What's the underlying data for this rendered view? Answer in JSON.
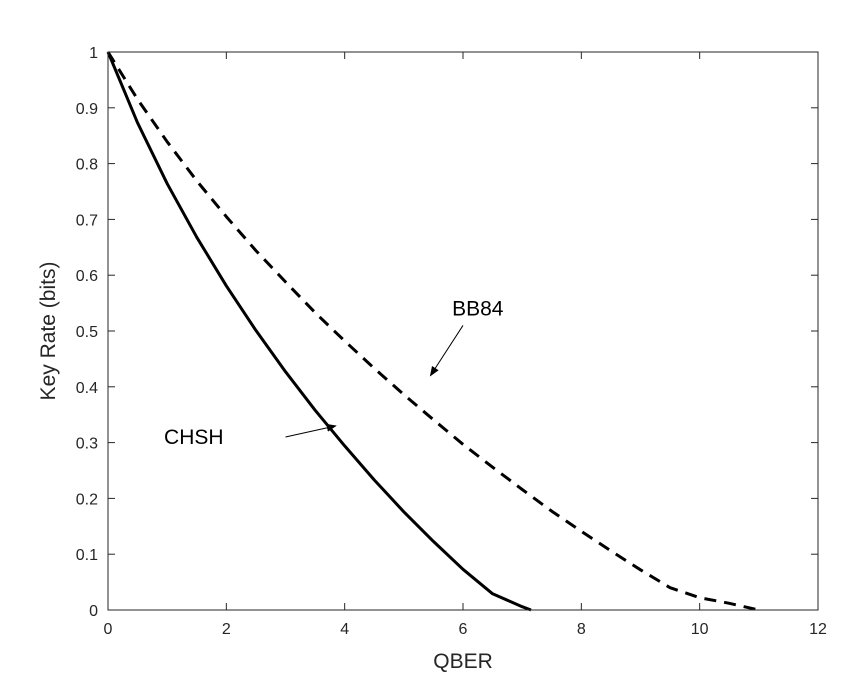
{
  "chart_data": {
    "type": "line",
    "title": "",
    "xlabel": "QBER",
    "ylabel": "Key Rate (bits)",
    "xlim": [
      0,
      12
    ],
    "ylim": [
      0,
      1
    ],
    "x_ticks": [
      0,
      2,
      4,
      6,
      8,
      10,
      12
    ],
    "y_ticks": [
      0,
      0.1,
      0.2,
      0.3,
      0.4,
      0.5,
      0.6,
      0.7,
      0.8,
      0.9,
      1
    ],
    "grid": false,
    "series": [
      {
        "name": "CHSH",
        "line_style": "solid",
        "color": "#000000",
        "x": [
          0,
          0.5,
          1,
          1.5,
          2,
          2.5,
          3,
          3.5,
          4,
          4.5,
          5,
          5.5,
          6,
          6.5,
          7,
          7.15
        ],
        "y": [
          1,
          0.873,
          0.764,
          0.668,
          0.581,
          0.501,
          0.427,
          0.358,
          0.294,
          0.233,
          0.176,
          0.123,
          0.073,
          0.029,
          0.006,
          0
        ]
      },
      {
        "name": "BB84",
        "line_style": "dashed",
        "color": "#000000",
        "x": [
          0,
          0.5,
          1,
          1.5,
          2,
          2.5,
          3,
          3.5,
          4,
          4.5,
          5,
          5.5,
          6,
          6.5,
          7,
          7.5,
          8,
          8.5,
          9,
          9.5,
          10,
          10.5,
          11
        ],
        "y": [
          1,
          0.915,
          0.839,
          0.769,
          0.705,
          0.644,
          0.588,
          0.533,
          0.482,
          0.433,
          0.386,
          0.341,
          0.297,
          0.256,
          0.216,
          0.177,
          0.141,
          0.106,
          0.072,
          0.04,
          0.022,
          0.012,
          0
        ]
      }
    ],
    "annotations": [
      {
        "text": "CHSH",
        "label_at": [
          1.45,
          0.31
        ],
        "arrow_from": [
          3.0,
          0.31
        ],
        "arrow_to": [
          3.85,
          0.33
        ]
      },
      {
        "text": "BB84",
        "label_at": [
          6.25,
          0.54
        ],
        "arrow_from": [
          6.0,
          0.51
        ],
        "arrow_to": [
          5.45,
          0.42
        ]
      }
    ]
  }
}
